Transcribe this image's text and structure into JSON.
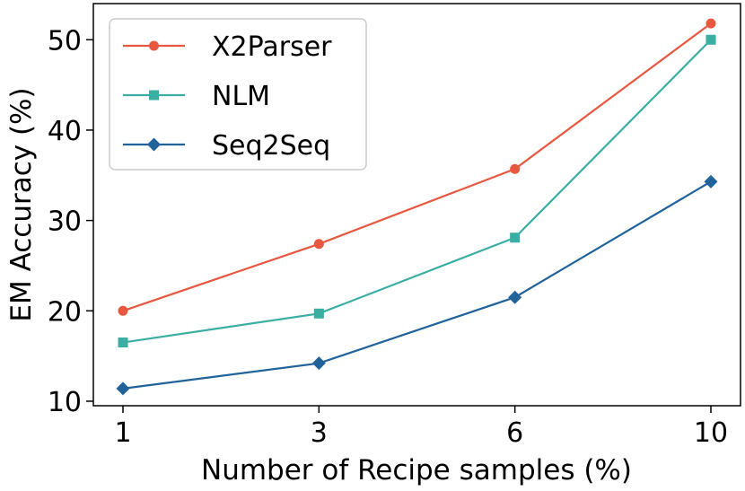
{
  "chart_data": {
    "type": "line",
    "title": "",
    "xlabel": "Number of Recipe samples (%)",
    "ylabel": "EM Accuracy (%)",
    "x": [
      1,
      3,
      6,
      10
    ],
    "x_tick_labels": [
      "1",
      "3",
      "6",
      "10"
    ],
    "y_ticks": [
      10,
      20,
      30,
      40,
      50
    ],
    "y_tick_labels": [
      "10",
      "20",
      "30",
      "40",
      "50"
    ],
    "ylim": [
      9.5,
      54.0
    ],
    "grid": false,
    "legend_position": "upper-left",
    "series": [
      {
        "name": "X2Parser",
        "color": "#e8573f",
        "marker": "circle",
        "values": [
          20.0,
          27.4,
          35.7,
          51.8
        ]
      },
      {
        "name": "NLM",
        "color": "#3aaea3",
        "marker": "square",
        "values": [
          16.5,
          19.7,
          28.1,
          50.0
        ]
      },
      {
        "name": "Seq2Seq",
        "color": "#20639b",
        "marker": "diamond",
        "values": [
          11.4,
          14.2,
          21.5,
          34.3
        ]
      }
    ]
  }
}
